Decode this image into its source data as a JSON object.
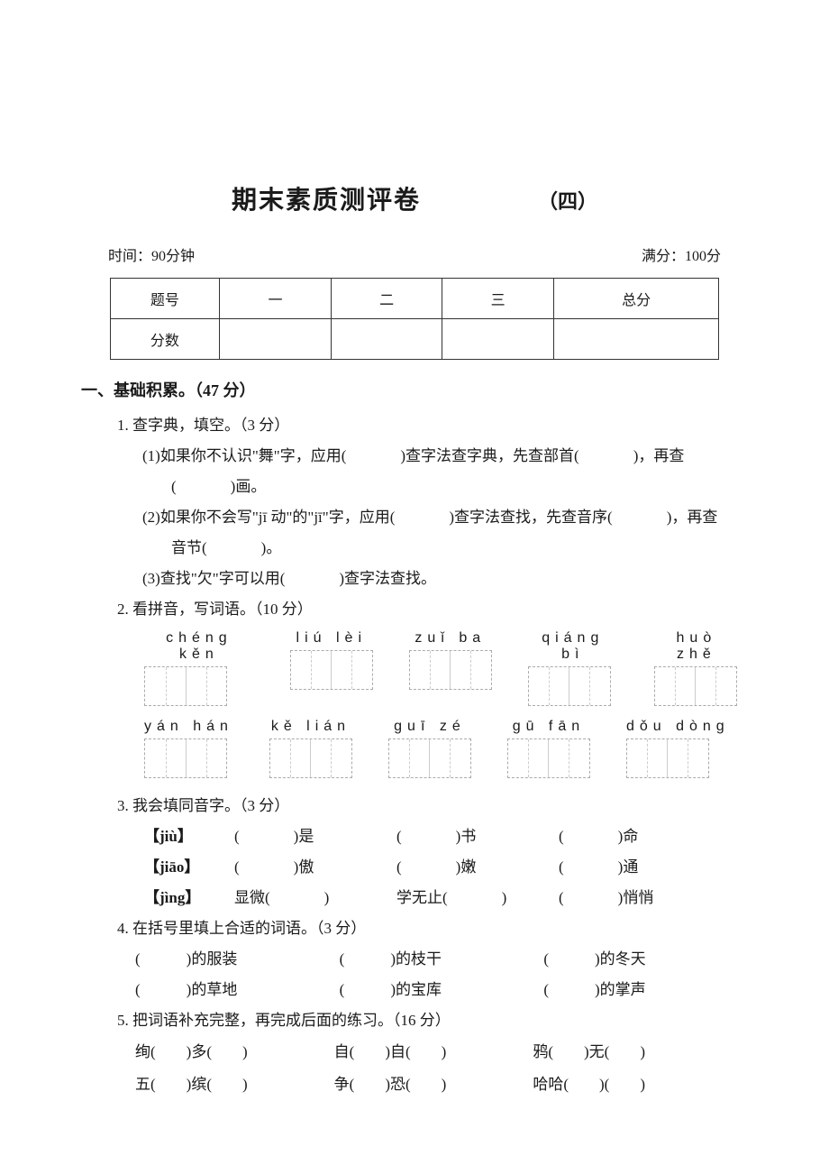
{
  "header": {
    "title": "期末素质测评卷",
    "subtitle": "（四）",
    "time_label": "时间：90分钟",
    "score_label": "满分：100分"
  },
  "score_table": {
    "row_header_1": "题号",
    "row_header_2": "分数",
    "cols": [
      "一",
      "二",
      "三",
      "总分"
    ]
  },
  "section1": {
    "heading": "一、基础积累。（47 分）",
    "q1": {
      "title": "1. 查字典，填空。（3 分）",
      "line1a": "(1)如果你不认识\"舞\"字，应用(",
      "line1b": ")查字法查字典，先查部首(",
      "line1c": ")，再查",
      "line1d_a": "(",
      "line1d_b": ")画。",
      "line2a": "(2)如果你不会写\"jī 动\"的\"jī\"字，应用(",
      "line2b": ")查字法查找，先查音序(",
      "line2c": ")，再查",
      "line2d_a": "音节(",
      "line2d_b": ")。",
      "line3a": "(3)查找\"欠\"字可以用(",
      "line3b": ")查字法查找。"
    },
    "q2": {
      "title": "2. 看拼音，写词语。（10 分）",
      "row1": [
        "chéng  kěn",
        "liú  lèi",
        "zuǐ  ba",
        "qiáng  bì",
        "huò  zhě"
      ],
      "row2": [
        "yán  hán",
        "kě  lián",
        "guī  zé",
        "gū  fān",
        "dǒu  dòng"
      ]
    },
    "q3": {
      "title": "3. 我会填同音字。（3 分）",
      "rows": [
        {
          "key": "【jiù】",
          "c1a": "(",
          "c1b": ")是",
          "c2a": "(",
          "c2b": ")书",
          "c3a": "(",
          "c3b": ")命"
        },
        {
          "key": "【jiāo】",
          "c1a": "(",
          "c1b": ")傲",
          "c2a": "(",
          "c2b": ")嫩",
          "c3a": "(",
          "c3b": ")通"
        },
        {
          "key": "【jìng】",
          "c1a": "显微(",
          "c1b": ")",
          "c2a": "学无止(",
          "c2b": ")",
          "c3a": "(",
          "c3b": ")悄悄"
        }
      ]
    },
    "q4": {
      "title": "4. 在括号里填上合适的词语。（3 分）",
      "rows": [
        [
          "(　　　)的服装",
          "(　　　)的枝干",
          "(　　　)的冬天"
        ],
        [
          "(　　　)的草地",
          "(　　　)的宝库",
          "(　　　)的掌声"
        ]
      ]
    },
    "q5": {
      "title": "5. 把词语补充完整，再完成后面的练习。（16 分）",
      "rows": [
        [
          "绚(　　)多(　　)",
          "自(　　)自(　　)",
          "鸦(　　)无(　　)"
        ],
        [
          "五(　　)缤(　　)",
          "争(　　)恐(　　)",
          "哈哈(　　)(　　)"
        ]
      ]
    }
  },
  "style": {
    "page_bg": "#ffffff",
    "text_color": "#1a1a1a",
    "title_fontsize": 28,
    "body_fontsize": 17,
    "table_border_color": "#333333",
    "box_dash_color": "#aaaaaa"
  }
}
